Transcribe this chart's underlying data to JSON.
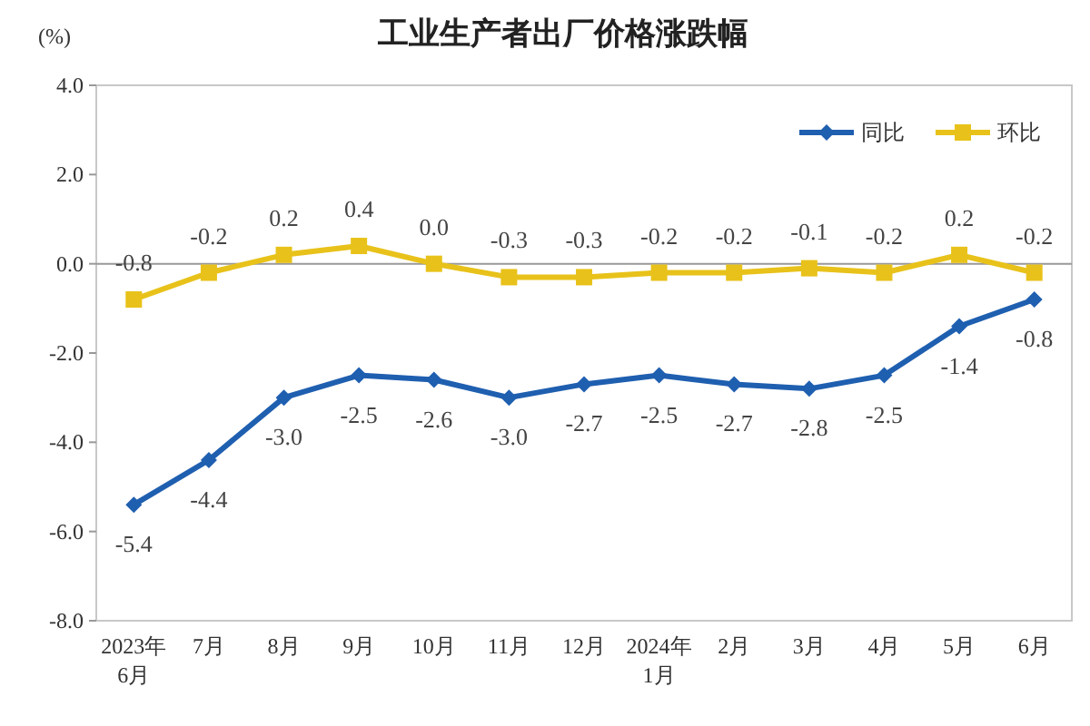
{
  "chart_data": {
    "type": "line",
    "title": "工业生产者出厂价格涨跌幅",
    "ylabel": "(%)",
    "categories": [
      "2023年\n6月",
      "7月",
      "8月",
      "9月",
      "10月",
      "11月",
      "12月",
      "2024年\n1月",
      "2月",
      "3月",
      "4月",
      "5月",
      "6月"
    ],
    "series": [
      {
        "name": "同比",
        "color": "#1f5fb0",
        "marker": "diamond",
        "values": [
          -5.4,
          -4.4,
          -3.0,
          -2.5,
          -2.6,
          -3.0,
          -2.7,
          -2.5,
          -2.7,
          -2.8,
          -2.5,
          -1.4,
          -0.8
        ],
        "value_labels": [
          "-5.4",
          "-4.4",
          "-3.0",
          "-2.5",
          "-2.6",
          "-3.0",
          "-2.7",
          "-2.5",
          "-2.7",
          "-2.8",
          "-2.5",
          "-1.4",
          "-0.8"
        ]
      },
      {
        "name": "环比",
        "color": "#e8c21a",
        "marker": "square",
        "values": [
          -0.8,
          -0.2,
          0.2,
          0.4,
          0.0,
          -0.3,
          -0.3,
          -0.2,
          -0.2,
          -0.1,
          -0.2,
          0.2,
          -0.2
        ],
        "value_labels": [
          "-0.8",
          "-0.2",
          "0.2",
          "0.4",
          "0.0",
          "-0.3",
          "-0.3",
          "-0.2",
          "-0.2",
          "-0.1",
          "-0.2",
          "0.2",
          "-0.2"
        ]
      }
    ],
    "ylim": [
      -8.0,
      4.0
    ],
    "yticks": [
      {
        "value": -8,
        "label": "-8.0"
      },
      {
        "value": -6,
        "label": "-6.0"
      },
      {
        "value": -4,
        "label": "-4.0"
      },
      {
        "value": -2,
        "label": "-2.0"
      },
      {
        "value": 0,
        "label": "0.0"
      },
      {
        "value": 2,
        "label": "2.0"
      },
      {
        "value": 4,
        "label": "4.0"
      }
    ],
    "ref_lines": [
      {
        "axis": "y",
        "value": 0,
        "color": "#999999"
      }
    ],
    "grid": false,
    "legend": "top right",
    "line_style": "solid"
  }
}
